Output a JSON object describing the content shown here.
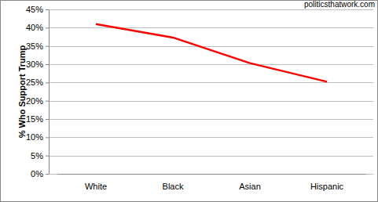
{
  "chart_data": {
    "type": "line",
    "y_label": "% Who Support Trump",
    "annotations": [
      "politicsthatwork.com"
    ],
    "categories": [
      "White",
      "Black",
      "Asian",
      "Hispanic"
    ],
    "values": [
      41,
      37.3,
      30.3,
      25.2
    ],
    "color": "#ff0000",
    "ylim": [
      0,
      45
    ],
    "yticks": [
      {
        "value": 0,
        "label": "0%"
      },
      {
        "value": 5,
        "label": "5%"
      },
      {
        "value": 10,
        "label": "10%"
      },
      {
        "value": 15,
        "label": "15%"
      },
      {
        "value": 20,
        "label": "20%"
      },
      {
        "value": 25,
        "label": "25%"
      },
      {
        "value": 30,
        "label": "30%"
      },
      {
        "value": 35,
        "label": "35%"
      },
      {
        "value": 40,
        "label": "40%"
      },
      {
        "value": 45,
        "label": "45%"
      }
    ],
    "grid": true
  }
}
